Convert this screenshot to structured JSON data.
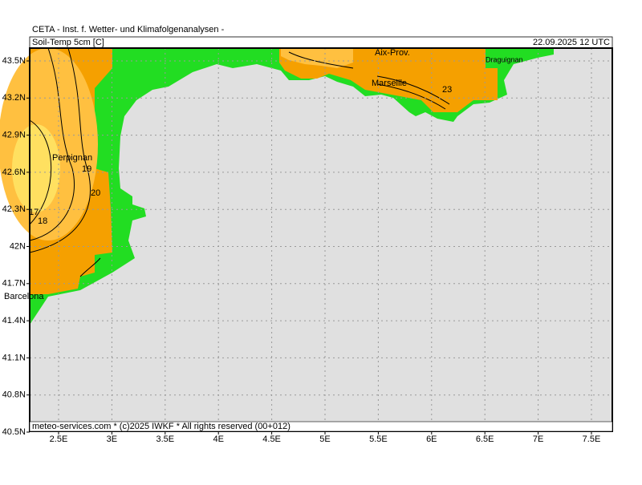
{
  "header": {
    "title": "CETA - Inst. f. Wetter- und Klimafolgenanalysen -",
    "parameter": "Soil-Temp 5cm [C]",
    "valid_time": "22.09.2025 12 UTC"
  },
  "footer": "meteo-services.com * (c)2025 IWKF * All rights reserved (00+012)",
  "axes": {
    "lat_labels": [
      "43.5N",
      "43.2N",
      "42.9N",
      "42.6N",
      "42.3N",
      "42N",
      "41.7N",
      "41.4N",
      "41.1N",
      "40.8N",
      "40.5N"
    ],
    "lon_labels": [
      "2.5E",
      "3E",
      "3.5E",
      "4E",
      "4.5E",
      "5E",
      "5.5E",
      "6E",
      "6.5E",
      "7E",
      "7.5E"
    ]
  },
  "places": [
    "Perpignan",
    "Barcelona",
    "Aix-Prov.",
    "Marseille",
    "Draguignan"
  ],
  "contour_labels": [
    "19",
    "20",
    "17",
    "18",
    "23"
  ]
}
